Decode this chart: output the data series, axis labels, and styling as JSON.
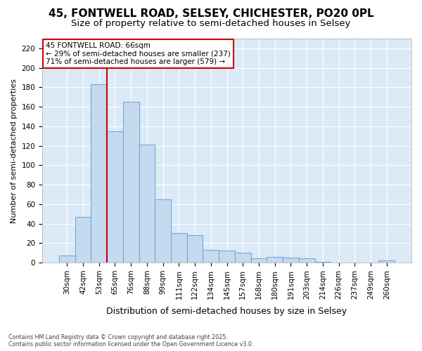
{
  "title1": "45, FONTWELL ROAD, SELSEY, CHICHESTER, PO20 0PL",
  "title2": "Size of property relative to semi-detached houses in Selsey",
  "xlabel": "Distribution of semi-detached houses by size in Selsey",
  "ylabel": "Number of semi-detached properties",
  "categories": [
    "30sqm",
    "42sqm",
    "53sqm",
    "65sqm",
    "76sqm",
    "88sqm",
    "99sqm",
    "111sqm",
    "122sqm",
    "134sqm",
    "145sqm",
    "157sqm",
    "168sqm",
    "180sqm",
    "191sqm",
    "203sqm",
    "214sqm",
    "226sqm",
    "237sqm",
    "249sqm",
    "260sqm"
  ],
  "values": [
    7,
    47,
    183,
    135,
    165,
    121,
    65,
    30,
    28,
    13,
    12,
    10,
    4,
    6,
    5,
    4,
    1,
    0,
    0,
    0,
    2
  ],
  "bar_color": "#c5d9f0",
  "bar_edge_color": "#6baed6",
  "property_line_color": "#cc0000",
  "property_line_x": 2.5,
  "annotation_title": "45 FONTWELL ROAD: 66sqm",
  "annotation_line1": "← 29% of semi-detached houses are smaller (237)",
  "annotation_line2": "71% of semi-detached houses are larger (579) →",
  "annotation_box_edgecolor": "#cc0000",
  "footer1": "Contains HM Land Registry data © Crown copyright and database right 2025.",
  "footer2": "Contains public sector information licensed under the Open Government Licence v3.0.",
  "fig_bg_color": "#ffffff",
  "plot_bg_color": "#dce9f7",
  "ylim": [
    0,
    230
  ],
  "yticks": [
    0,
    20,
    40,
    60,
    80,
    100,
    120,
    140,
    160,
    180,
    200,
    220
  ],
  "grid_color": "#ffffff",
  "title_fontsize": 11,
  "subtitle_fontsize": 9.5,
  "tick_fontsize": 7.5,
  "ylabel_fontsize": 8,
  "xlabel_fontsize": 9
}
